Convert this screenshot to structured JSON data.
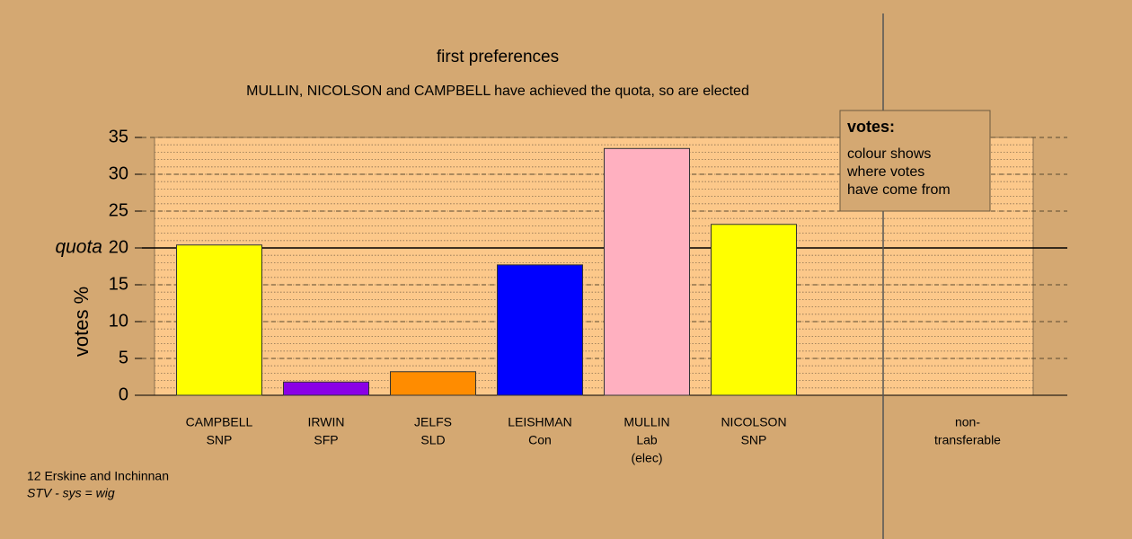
{
  "chart_data": {
    "type": "bar",
    "title": "first preferences",
    "subtitle": "MULLIN, NICOLSON and CAMPBELL have achieved the quota, so are elected",
    "y_label": "votes %",
    "categories": [
      [
        "CAMPBELL",
        "SNP"
      ],
      [
        "IRWIN",
        "SFP"
      ],
      [
        "JELFS",
        "SLD"
      ],
      [
        "LEISHMAN",
        "Con"
      ],
      [
        "MULLIN",
        "Lab",
        "(elec)"
      ],
      [
        "NICOLSON",
        "SNP"
      ],
      null,
      [
        "non-",
        "transferable"
      ]
    ],
    "values": [
      20.4,
      1.8,
      3.2,
      17.7,
      33.5,
      23.2,
      null,
      0
    ],
    "colors": [
      "#ffff00",
      "#8a00e6",
      "#ff8c00",
      "#0000ff",
      "#ffb0c0",
      "#ffff00",
      null,
      "#d4a872"
    ],
    "ylim": [
      0,
      35
    ],
    "yticks": [
      0,
      5,
      10,
      15,
      20,
      25,
      30,
      35
    ],
    "minor_grid_step": 1,
    "quota": {
      "value": 20,
      "label": "quota"
    },
    "legend": {
      "title": "votes:",
      "lines": [
        "colour shows",
        "where votes",
        "have come from"
      ]
    },
    "footer": [
      "12 Erskine and Inchinnan",
      "STV - sys = wig"
    ]
  }
}
